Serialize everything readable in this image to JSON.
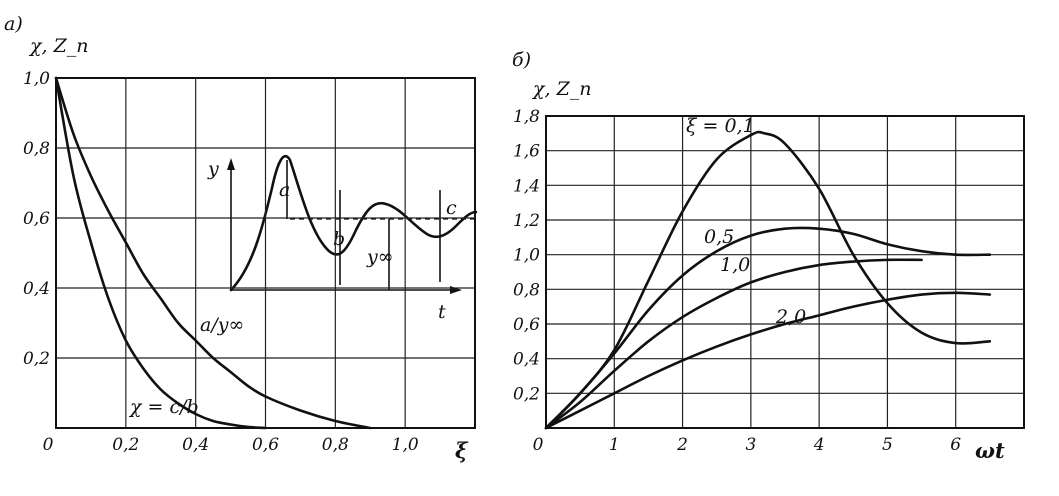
{
  "panels": {
    "a": {
      "label": "а)"
    },
    "b": {
      "label": "б)"
    }
  },
  "chart_data": [
    {
      "type": "line",
      "panel": "а)",
      "ylabel": "χ, Z_n",
      "xlabel": "ξ",
      "xlim": [
        0,
        1.2
      ],
      "ylim": [
        0,
        1.0
      ],
      "grid": true,
      "x_ticks": [
        "0",
        "0,2",
        "0,4",
        "0,6",
        "0,8",
        "1,0"
      ],
      "y_ticks": [
        "1,0",
        "0,8",
        "0,6",
        "0,4",
        "0,2"
      ],
      "series": [
        {
          "name": "χ = c/b",
          "x": [
            0,
            0.05,
            0.1,
            0.15,
            0.2,
            0.25,
            0.3,
            0.35,
            0.4,
            0.45,
            0.5,
            0.55,
            0.6
          ],
          "y": [
            1.0,
            0.72,
            0.53,
            0.37,
            0.25,
            0.17,
            0.11,
            0.07,
            0.04,
            0.02,
            0.01,
            0.003,
            0.0
          ]
        },
        {
          "name": "a/y∞",
          "x": [
            0,
            0.05,
            0.1,
            0.15,
            0.2,
            0.25,
            0.3,
            0.35,
            0.4,
            0.45,
            0.5,
            0.55,
            0.6,
            0.7,
            0.8,
            0.9
          ],
          "y": [
            1.0,
            0.84,
            0.72,
            0.62,
            0.53,
            0.44,
            0.37,
            0.3,
            0.25,
            0.2,
            0.16,
            0.12,
            0.09,
            0.05,
            0.02,
            0.0
          ]
        }
      ],
      "inset": {
        "ylabel": "y",
        "xlabel": "t",
        "annotations": [
          "a",
          "b",
          "c",
          "y∞"
        ]
      }
    },
    {
      "type": "line",
      "panel": "б)",
      "ylabel": "χ, Z_n",
      "xlabel": "ωt",
      "xlim": [
        0,
        7
      ],
      "ylim": [
        0,
        1.8
      ],
      "grid": true,
      "x_ticks": [
        "0",
        "1",
        "2",
        "3",
        "4",
        "5",
        "6"
      ],
      "y_ticks": [
        "1,8",
        "1,6",
        "1,4",
        "1,2",
        "1,0",
        "0,8",
        "0,6",
        "0,4",
        "0,2"
      ],
      "series": [
        {
          "name": "ξ = 0,1",
          "x": [
            0,
            0.5,
            1,
            1.5,
            2,
            2.5,
            3,
            3.2,
            3.5,
            4,
            4.5,
            5,
            5.5,
            6,
            6.5
          ],
          "y": [
            0,
            0.2,
            0.45,
            0.85,
            1.25,
            1.55,
            1.69,
            1.7,
            1.64,
            1.38,
            1.0,
            0.72,
            0.55,
            0.49,
            0.5
          ]
        },
        {
          "name": "0,5",
          "x": [
            0,
            0.5,
            1,
            1.5,
            2,
            2.5,
            3,
            3.5,
            4,
            4.5,
            5,
            5.5,
            6,
            6.5
          ],
          "y": [
            0,
            0.2,
            0.43,
            0.68,
            0.88,
            1.02,
            1.11,
            1.15,
            1.15,
            1.12,
            1.06,
            1.02,
            1.0,
            1.0
          ]
        },
        {
          "name": "1,0",
          "x": [
            0,
            0.5,
            1,
            1.5,
            2,
            2.5,
            3,
            3.5,
            4,
            4.5,
            5,
            5.5
          ],
          "y": [
            0,
            0.15,
            0.33,
            0.5,
            0.64,
            0.75,
            0.84,
            0.9,
            0.94,
            0.96,
            0.97,
            0.97
          ]
        },
        {
          "name": "2,0",
          "x": [
            0,
            0.5,
            1,
            1.5,
            2,
            2.5,
            3,
            3.5,
            4,
            4.5,
            5,
            5.5,
            6,
            6.5
          ],
          "y": [
            0,
            0.1,
            0.2,
            0.3,
            0.39,
            0.47,
            0.54,
            0.6,
            0.65,
            0.7,
            0.74,
            0.77,
            0.78,
            0.77
          ]
        }
      ]
    }
  ]
}
